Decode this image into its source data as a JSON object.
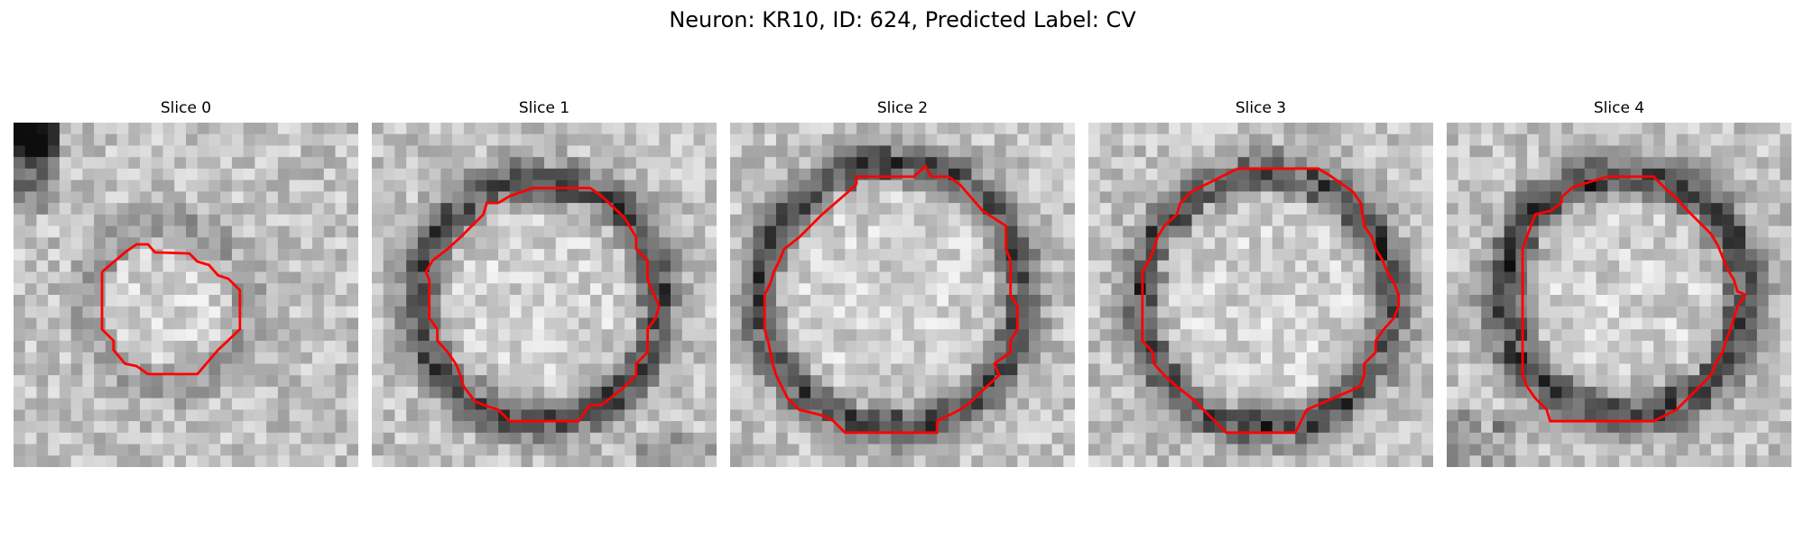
{
  "figure": {
    "title": "Neuron: KR10, ID: 624, Predicted Label: CV"
  },
  "colors": {
    "contour": "#ff0000",
    "background": "#ffffff"
  },
  "panels": [
    {
      "title": "Slice 0"
    },
    {
      "title": "Slice 1"
    },
    {
      "title": "Slice 2"
    },
    {
      "title": "Slice 3"
    },
    {
      "title": "Slice 4"
    }
  ]
}
